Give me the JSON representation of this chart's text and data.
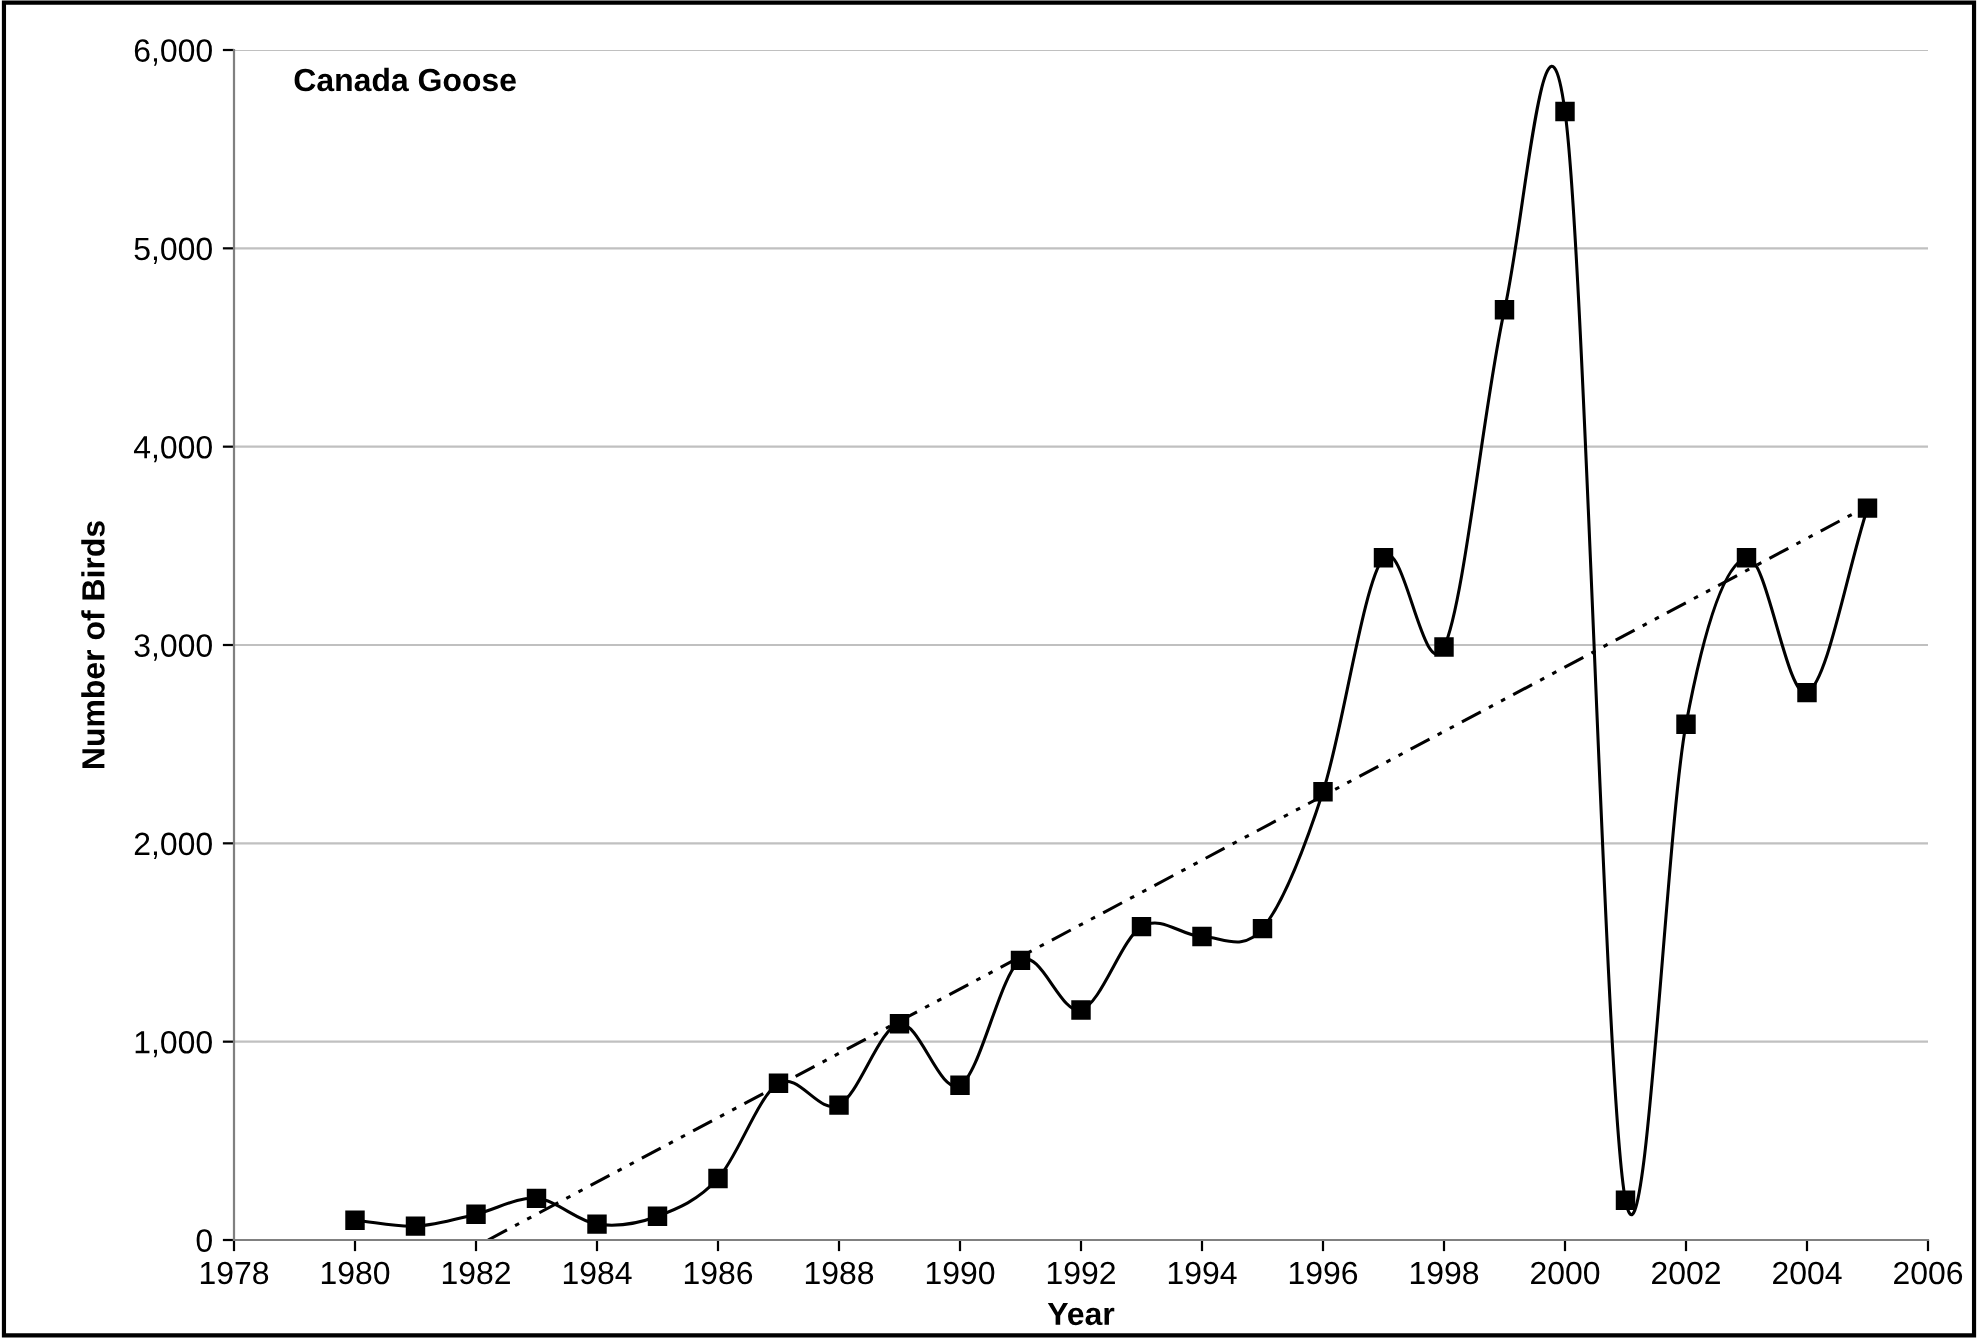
{
  "chart_data": {
    "type": "line",
    "title": "Canada Goose",
    "xlabel": "Year",
    "ylabel": "Number of Birds",
    "xlim": [
      1978,
      2006
    ],
    "xticks": [
      1978,
      1980,
      1982,
      1984,
      1986,
      1988,
      1990,
      1992,
      1994,
      1996,
      1998,
      2000,
      2002,
      2004,
      2006
    ],
    "ylim": [
      0,
      6000
    ],
    "yticks": [
      {
        "value": 0,
        "label": "0"
      },
      {
        "value": 1000,
        "label": "1,000"
      },
      {
        "value": 2000,
        "label": "2,000"
      },
      {
        "value": 3000,
        "label": "3,000"
      },
      {
        "value": 4000,
        "label": "4,000"
      },
      {
        "value": 5000,
        "label": "5,000"
      },
      {
        "value": 6000,
        "label": "6,000"
      }
    ],
    "grid": "y",
    "legend": false,
    "series": [
      {
        "color": "#000000",
        "marker": "square",
        "line_style": "solid",
        "x": [
          1980,
          1981,
          1982,
          1983,
          1984,
          1985,
          1986,
          1987,
          1988,
          1989,
          1990,
          1991,
          1992,
          1993,
          1994,
          1995,
          1996,
          1997,
          1998,
          1999,
          2000,
          2001,
          2002,
          2003,
          2004,
          2005
        ],
        "values": [
          100,
          70,
          130,
          210,
          80,
          120,
          310,
          790,
          680,
          1090,
          780,
          1410,
          1160,
          1580,
          1530,
          1570,
          2260,
          3440,
          2990,
          4690,
          5690,
          200,
          2600,
          3440,
          2760,
          3690
        ]
      },
      {
        "color": "#000000",
        "marker": "none",
        "line_style": "dashed",
        "x": [
          1982.2,
          2005
        ],
        "values": [
          0,
          3700
        ]
      }
    ]
  }
}
